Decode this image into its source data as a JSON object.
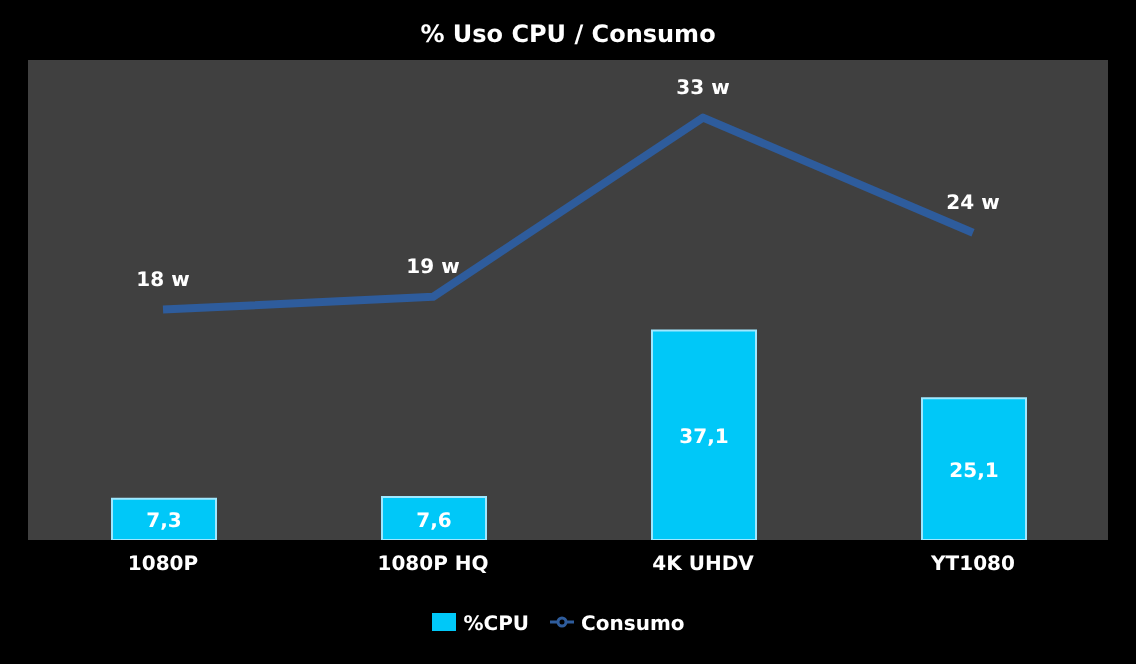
{
  "chart_data": {
    "type": "bar",
    "title": "% Uso CPU / Consumo",
    "categories": [
      "1080P",
      "1080P HQ",
      "4K UHDV",
      "YT1080"
    ],
    "series": [
      {
        "name": "%CPU",
        "color": "#00c8f8",
        "values": [
          7.3,
          7.6,
          37.1,
          25.1
        ],
        "value_labels": [
          "7,3",
          "7,6",
          "37,1",
          "25,1"
        ]
      },
      {
        "name": "Consumo",
        "type": "line",
        "axis": "y2",
        "color": "#2e5c9c",
        "values": [
          18,
          19,
          33,
          24
        ],
        "value_labels": [
          "18 w",
          "19 w",
          "33 w",
          "24 w"
        ]
      }
    ],
    "ylim": [
      0,
      85
    ],
    "y2lim": [
      0,
      37.5
    ],
    "tick_labels": "x",
    "legend": "bottom",
    "marker": "none"
  }
}
